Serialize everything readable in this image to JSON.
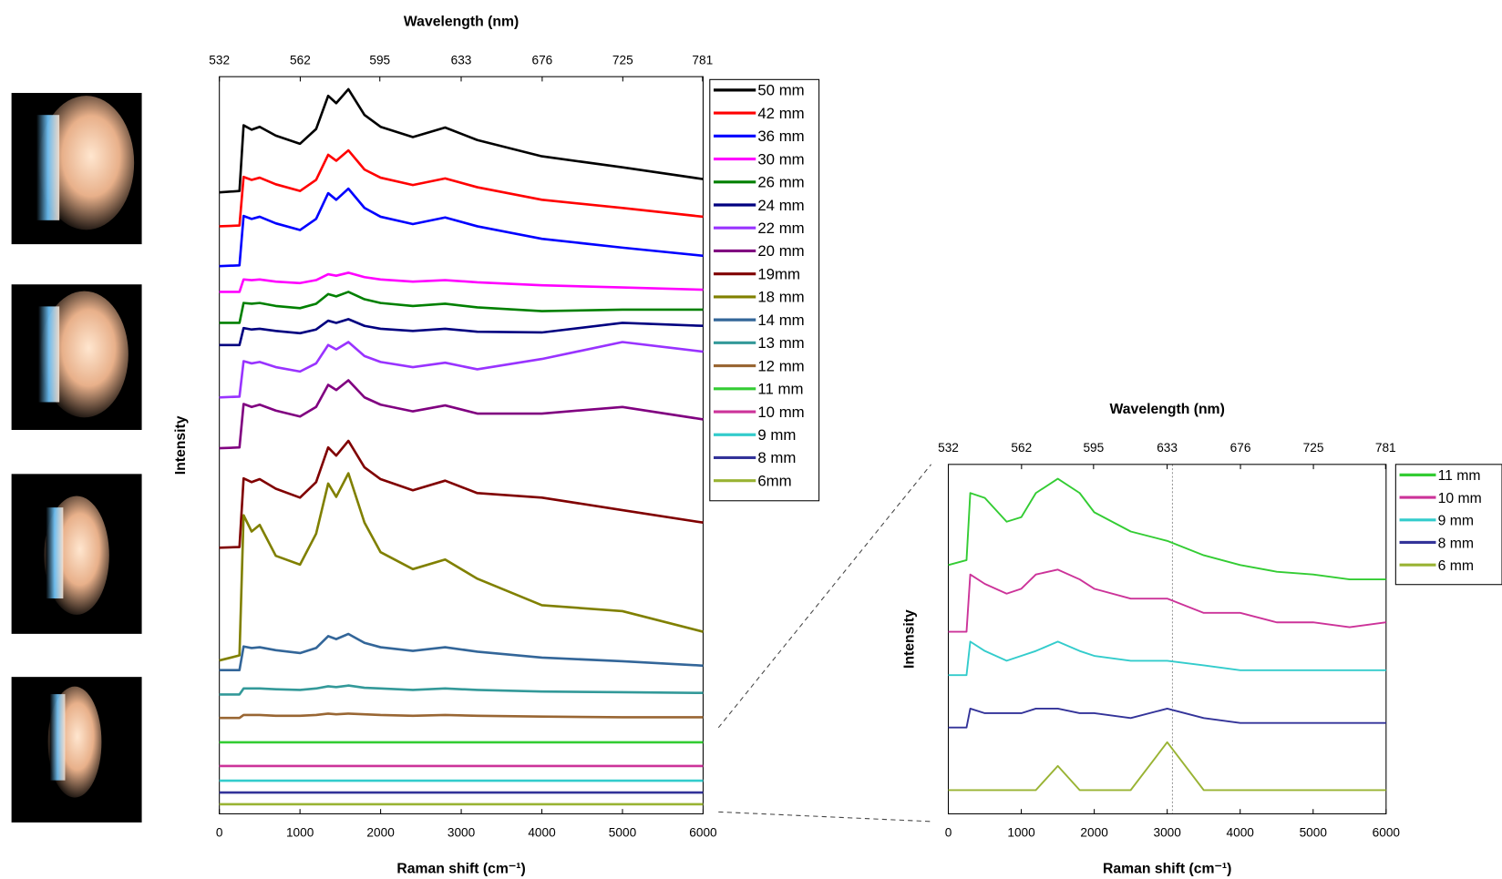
{
  "chart_data": [
    {
      "type": "line",
      "x2label": "Wavelength (nm)",
      "xlabel": "Raman shift (cm⁻¹)",
      "ylabel": "Intensity",
      "xlim": [
        0,
        6000
      ],
      "xticks": [
        0,
        1000,
        2000,
        3000,
        4000,
        5000,
        6000
      ],
      "x2ticks": [
        532,
        562,
        595,
        633,
        676,
        725,
        781
      ],
      "ylim": [
        0,
        100
      ],
      "x": [
        0,
        250,
        300,
        400,
        500,
        700,
        1000,
        1200,
        1350,
        1450,
        1600,
        1800,
        2000,
        2400,
        2800,
        3200,
        4000,
        5000,
        6000
      ],
      "series": [
        {
          "name": "50 mm",
          "color": "#000000",
          "values": [
            84.3,
            84.5,
            93.4,
            92.8,
            93.2,
            92.0,
            90.9,
            92.9,
            97.4,
            96.4,
            98.3,
            94.8,
            93.2,
            91.8,
            93.1,
            91.4,
            89.2,
            87.7,
            86.1
          ]
        },
        {
          "name": "42 mm",
          "color": "#ff0000",
          "values": [
            79.7,
            79.8,
            86.4,
            86.0,
            86.3,
            85.4,
            84.5,
            86.0,
            89.4,
            88.6,
            90.0,
            87.4,
            86.3,
            85.3,
            86.2,
            85.0,
            83.3,
            82.2,
            81.0
          ]
        },
        {
          "name": "36 mm",
          "color": "#0000ff",
          "values": [
            74.3,
            74.4,
            81.1,
            80.7,
            81.0,
            80.1,
            79.2,
            80.7,
            84.2,
            83.3,
            84.8,
            82.2,
            81.0,
            80.0,
            80.9,
            79.7,
            78.0,
            76.8,
            75.7
          ]
        },
        {
          "name": "30 mm",
          "color": "#ff00ff",
          "values": [
            70.8,
            70.8,
            72.5,
            72.4,
            72.5,
            72.2,
            72.0,
            72.4,
            73.2,
            73.0,
            73.4,
            72.8,
            72.5,
            72.2,
            72.4,
            72.1,
            71.7,
            71.4,
            71.1
          ]
        },
        {
          "name": "26 mm",
          "color": "#008000",
          "values": [
            66.6,
            66.6,
            69.3,
            69.2,
            69.3,
            68.9,
            68.6,
            69.2,
            70.5,
            70.2,
            70.8,
            69.8,
            69.3,
            68.9,
            69.2,
            68.7,
            68.2,
            68.4,
            68.4
          ]
        },
        {
          "name": "24 mm",
          "color": "#000080",
          "values": [
            63.6,
            63.6,
            65.9,
            65.7,
            65.8,
            65.5,
            65.2,
            65.7,
            66.9,
            66.6,
            67.1,
            66.2,
            65.8,
            65.5,
            65.8,
            65.4,
            65.3,
            66.6,
            66.2
          ]
        },
        {
          "name": "22 mm",
          "color": "#9933ff",
          "values": [
            56.5,
            56.6,
            61.4,
            61.1,
            61.3,
            60.6,
            60.0,
            61.1,
            63.6,
            63.0,
            64.0,
            62.1,
            61.3,
            60.6,
            61.2,
            60.3,
            61.7,
            64.0,
            62.7
          ]
        },
        {
          "name": "20 mm",
          "color": "#800080",
          "values": [
            49.6,
            49.7,
            55.6,
            55.2,
            55.5,
            54.7,
            53.9,
            55.2,
            58.2,
            57.5,
            58.8,
            56.5,
            55.5,
            54.6,
            55.4,
            54.3,
            54.3,
            55.2,
            53.5
          ]
        },
        {
          "name": "19mm",
          "color": "#800000",
          "values": [
            36.1,
            36.2,
            45.5,
            45.0,
            45.4,
            44.1,
            42.9,
            45.0,
            49.7,
            48.6,
            50.6,
            47.0,
            45.4,
            43.9,
            45.2,
            43.5,
            42.9,
            41.2,
            39.5
          ]
        },
        {
          "name": "18 mm",
          "color": "#808000",
          "values": [
            20.8,
            21.5,
            40.5,
            38.3,
            39.2,
            35.0,
            33.8,
            38.0,
            44.8,
            43.0,
            46.2,
            39.5,
            35.5,
            33.2,
            34.5,
            31.9,
            28.3,
            27.5,
            24.7
          ]
        },
        {
          "name": "14 mm",
          "color": "#336699",
          "values": [
            19.5,
            19.5,
            22.7,
            22.5,
            22.6,
            22.2,
            21.8,
            22.5,
            24.1,
            23.7,
            24.4,
            23.2,
            22.6,
            22.1,
            22.6,
            22.0,
            21.2,
            20.7,
            20.1
          ]
        },
        {
          "name": "13 mm",
          "color": "#339999",
          "values": [
            16.2,
            16.2,
            17.0,
            17.0,
            17.0,
            16.9,
            16.8,
            17.0,
            17.3,
            17.2,
            17.4,
            17.1,
            17.0,
            16.8,
            17.0,
            16.8,
            16.6,
            16.5,
            16.4
          ]
        },
        {
          "name": "12 mm",
          "color": "#996633",
          "values": [
            13.0,
            13.0,
            13.4,
            13.4,
            13.4,
            13.3,
            13.3,
            13.4,
            13.6,
            13.5,
            13.6,
            13.5,
            13.4,
            13.3,
            13.4,
            13.3,
            13.2,
            13.1,
            13.1
          ]
        },
        {
          "name": "11 mm",
          "color": "#33cc33",
          "values": [
            9.7,
            9.7,
            9.7,
            9.7,
            9.7,
            9.7,
            9.7,
            9.7,
            9.7,
            9.7,
            9.7,
            9.7,
            9.7,
            9.7,
            9.7,
            9.7,
            9.7,
            9.7,
            9.7
          ]
        },
        {
          "name": "10 mm",
          "color": "#cc3399",
          "values": [
            6.5,
            6.5,
            6.5,
            6.5,
            6.5,
            6.5,
            6.5,
            6.5,
            6.5,
            6.5,
            6.5,
            6.5,
            6.5,
            6.5,
            6.5,
            6.5,
            6.5,
            6.5,
            6.5
          ]
        },
        {
          "name": "9 mm",
          "color": "#33cccc",
          "values": [
            4.5,
            4.5,
            4.5,
            4.5,
            4.5,
            4.5,
            4.5,
            4.5,
            4.5,
            4.5,
            4.5,
            4.5,
            4.5,
            4.5,
            4.5,
            4.5,
            4.5,
            4.5,
            4.5
          ]
        },
        {
          "name": "8 mm",
          "color": "#333399",
          "values": [
            2.9,
            2.9,
            2.9,
            2.9,
            2.9,
            2.9,
            2.9,
            2.9,
            2.9,
            2.9,
            2.9,
            2.9,
            2.9,
            2.9,
            2.9,
            2.9,
            2.9,
            2.9,
            2.9
          ]
        },
        {
          "name": "6mm",
          "color": "#99b333",
          "values": [
            1.3,
            1.3,
            1.3,
            1.3,
            1.3,
            1.3,
            1.3,
            1.3,
            1.3,
            1.3,
            1.3,
            1.3,
            1.3,
            1.3,
            1.3,
            1.3,
            1.3,
            1.3,
            1.3
          ]
        }
      ]
    },
    {
      "type": "line",
      "x2label": "Wavelength (nm)",
      "xlabel": "Raman shift (cm⁻¹)",
      "ylabel": "Intensity",
      "xlim": [
        0,
        6000
      ],
      "xticks": [
        0,
        1000,
        2000,
        3000,
        4000,
        5000,
        6000
      ],
      "x2ticks": [
        532,
        562,
        595,
        633,
        676,
        725,
        781
      ],
      "ylim": [
        0,
        100
      ],
      "x": [
        0,
        250,
        300,
        500,
        800,
        1000,
        1200,
        1500,
        1800,
        2000,
        2500,
        3000,
        3500,
        4000,
        4500,
        5000,
        5500,
        6000
      ],
      "series": [
        {
          "name": "11 mm",
          "color": "#33cc33",
          "values": [
            71.2,
            72.6,
            91.8,
            90.4,
            83.6,
            84.9,
            91.8,
            95.9,
            91.8,
            86.3,
            80.8,
            78.1,
            74.0,
            71.2,
            69.3,
            68.5,
            67.1,
            67.1
          ]
        },
        {
          "name": "10 mm",
          "color": "#cc3399",
          "values": [
            52.1,
            52.1,
            68.5,
            65.8,
            63.0,
            64.4,
            68.5,
            69.9,
            67.1,
            64.4,
            61.6,
            61.6,
            57.5,
            57.5,
            54.8,
            54.8,
            53.4,
            54.8
          ]
        },
        {
          "name": "9 mm",
          "color": "#33cccc",
          "values": [
            39.7,
            39.7,
            49.3,
            46.6,
            43.8,
            45.2,
            46.6,
            49.3,
            46.6,
            45.2,
            43.8,
            43.8,
            42.5,
            41.1,
            41.1,
            41.1,
            41.1,
            41.1
          ]
        },
        {
          "name": "8 mm",
          "color": "#333399",
          "values": [
            24.7,
            24.7,
            30.1,
            28.8,
            28.8,
            28.8,
            30.1,
            30.1,
            28.8,
            28.8,
            27.4,
            30.1,
            27.4,
            26.0,
            26.0,
            26.0,
            26.0,
            26.0
          ]
        },
        {
          "name": "6 mm",
          "color": "#99b333",
          "values": [
            6.8,
            6.8,
            6.8,
            6.8,
            6.8,
            6.8,
            6.8,
            13.7,
            6.8,
            6.8,
            6.8,
            20.5,
            6.8,
            6.8,
            6.8,
            6.8,
            6.8,
            6.8
          ]
        }
      ]
    }
  ]
}
